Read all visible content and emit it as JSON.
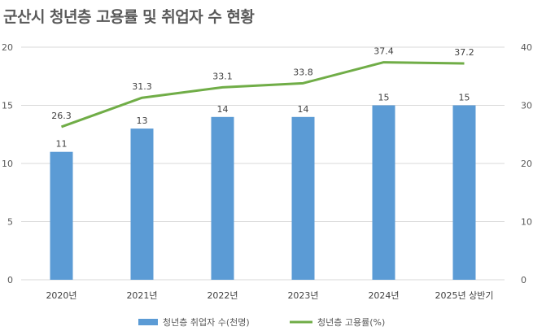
{
  "title": "군산시 청년층 고용률 및 취업자 수 현황",
  "colors": {
    "bar": "#5b9bd5",
    "line": "#70ad47",
    "grid": "#d9d9d9",
    "text": "#595959"
  },
  "chart_data": {
    "type": "bar",
    "title": "군산시 청년층 고용률 및 취업자 수 현황",
    "categories": [
      "2020년",
      "2021년",
      "2022년",
      "2023년",
      "2024년",
      "2025년 상반기"
    ],
    "series": [
      {
        "name": "청년층 취업자 수(천명)",
        "type": "bar",
        "axis": "left",
        "values": [
          11,
          13,
          14,
          14,
          15,
          15
        ],
        "labels": [
          "11",
          "13",
          "14",
          "14",
          "15",
          "15"
        ]
      },
      {
        "name": "청년층 고용률(%)",
        "type": "line",
        "axis": "right",
        "values": [
          26.3,
          31.3,
          33.1,
          33.8,
          37.4,
          37.2
        ],
        "labels": [
          "26.3",
          "31.3",
          "33.1",
          "33.8",
          "37.4",
          "37.2"
        ]
      }
    ],
    "y_left": {
      "ylim": [
        0,
        20
      ],
      "ticks": [
        "0",
        "5",
        "10",
        "15",
        "20"
      ]
    },
    "y_right": {
      "ylim": [
        0,
        40
      ],
      "ticks": [
        "0",
        "10",
        "20",
        "30",
        "40"
      ]
    },
    "grid": true,
    "legend": "bottom"
  }
}
